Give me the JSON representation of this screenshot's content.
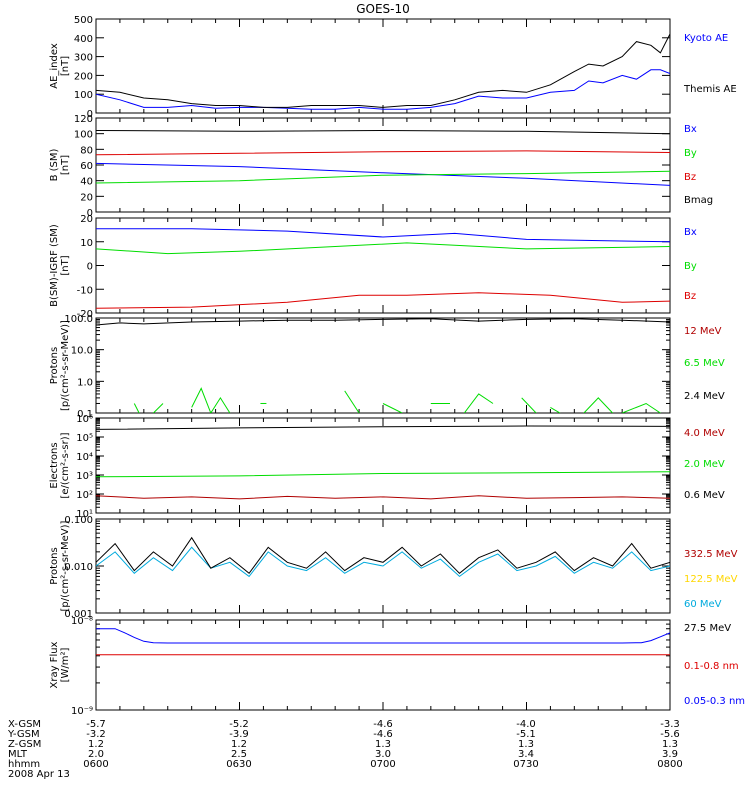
{
  "title": "GOES-10",
  "colors": {
    "black": "#000000",
    "blue": "#0000ff",
    "red": "#dd0000",
    "green": "#00dd00",
    "darkred": "#b00000",
    "yellow": "#ffd700",
    "cyan": "#00aadd"
  },
  "footer": {
    "rows": [
      {
        "label": "X-GSM",
        "values": [
          "-5.7",
          "-5.2",
          "-4.6",
          "-4.0",
          "-3.3"
        ]
      },
      {
        "label": "Y-GSM",
        "values": [
          "-3.2",
          "-3.9",
          "-4.6",
          "-5.1",
          "-5.6"
        ]
      },
      {
        "label": "Z-GSM",
        "values": [
          "1.2",
          "1.2",
          "1.3",
          "1.3",
          "1.3"
        ]
      },
      {
        "label": "MLT",
        "values": [
          "2.0",
          "2.5",
          "3.0",
          "3.4",
          "3.9"
        ]
      },
      {
        "label": "hhmm",
        "values": [
          "0600",
          "0630",
          "0700",
          "0730",
          "0800"
        ]
      }
    ],
    "date": "2008 Apr 13"
  },
  "chart_data": [
    {
      "type": "line",
      "ylabel": [
        "AE_index",
        "[nT]"
      ],
      "ylim": [
        0,
        500
      ],
      "yscale": "linear",
      "yticks": [
        0,
        100,
        200,
        300,
        400,
        500
      ],
      "ytick_labels": [
        "0",
        "100",
        "200",
        "300",
        "400",
        "500"
      ],
      "xlim": [
        0,
        120
      ],
      "series": [
        {
          "name": "Kyoto AE",
          "color": "#0000ff",
          "x": [
            0,
            5,
            10,
            15,
            20,
            25,
            30,
            35,
            40,
            45,
            50,
            55,
            60,
            65,
            70,
            75,
            80,
            85,
            90,
            95,
            100,
            103,
            106,
            110,
            113,
            116,
            118,
            120
          ],
          "values": [
            100,
            70,
            30,
            30,
            40,
            25,
            30,
            30,
            25,
            20,
            20,
            30,
            20,
            20,
            30,
            50,
            90,
            80,
            80,
            110,
            120,
            170,
            160,
            200,
            180,
            230,
            230,
            210
          ]
        },
        {
          "name": "Themis AE",
          "color": "#000000",
          "x": [
            0,
            5,
            10,
            15,
            20,
            25,
            30,
            35,
            40,
            45,
            50,
            55,
            60,
            65,
            70,
            75,
            80,
            85,
            90,
            95,
            100,
            103,
            106,
            110,
            113,
            116,
            118,
            120
          ],
          "values": [
            120,
            110,
            80,
            70,
            50,
            40,
            40,
            30,
            30,
            40,
            40,
            40,
            30,
            40,
            40,
            70,
            110,
            120,
            110,
            150,
            220,
            260,
            250,
            300,
            380,
            360,
            320,
            420
          ]
        }
      ]
    },
    {
      "type": "line",
      "ylabel": [
        "B (SM)",
        "[nT]"
      ],
      "ylim": [
        0,
        120
      ],
      "yscale": "linear",
      "yticks": [
        0,
        20,
        40,
        60,
        80,
        100,
        120
      ],
      "ytick_labels": [
        "0",
        "20",
        "40",
        "60",
        "80",
        "100",
        "120"
      ],
      "xlim": [
        0,
        120
      ],
      "series": [
        {
          "name": "Bx",
          "color": "#0000ff",
          "x": [
            0,
            30,
            60,
            90,
            120
          ],
          "values": [
            62,
            58,
            50,
            43,
            34
          ]
        },
        {
          "name": "By",
          "color": "#00dd00",
          "x": [
            0,
            30,
            60,
            90,
            120
          ],
          "values": [
            37,
            40,
            47,
            49,
            52
          ]
        },
        {
          "name": "Bz",
          "color": "#dd0000",
          "x": [
            0,
            30,
            60,
            90,
            120
          ],
          "values": [
            73,
            75,
            77,
            78,
            76
          ]
        },
        {
          "name": "Bmag",
          "color": "#000000",
          "x": [
            0,
            30,
            60,
            90,
            120
          ],
          "values": [
            104,
            103,
            104,
            103,
            100
          ]
        }
      ]
    },
    {
      "type": "line",
      "ylabel": [
        "B(SM)-IGRF (SM)",
        "[nT]"
      ],
      "ylim": [
        -20,
        20
      ],
      "yscale": "linear",
      "yticks": [
        -20,
        -10,
        0,
        10,
        20
      ],
      "ytick_labels": [
        "-20",
        "-10",
        "0",
        "10",
        "20"
      ],
      "xlim": [
        0,
        120
      ],
      "series": [
        {
          "name": "Bx",
          "color": "#0000ff",
          "x": [
            0,
            20,
            40,
            60,
            75,
            90,
            120
          ],
          "values": [
            15.5,
            15.5,
            14.5,
            12,
            13.5,
            11,
            10
          ]
        },
        {
          "name": "By",
          "color": "#00dd00",
          "x": [
            0,
            15,
            30,
            50,
            65,
            75,
            90,
            120
          ],
          "values": [
            7,
            5,
            6,
            8,
            9.5,
            8.5,
            7,
            8
          ]
        },
        {
          "name": "Bz",
          "color": "#dd0000",
          "x": [
            0,
            20,
            40,
            55,
            65,
            80,
            95,
            110,
            120
          ],
          "values": [
            -18,
            -17.5,
            -15.5,
            -12.5,
            -12.5,
            -11.5,
            -12.5,
            -15.5,
            -15
          ]
        }
      ]
    },
    {
      "type": "line",
      "ylabel": [
        "Protons",
        "[p/(cm²-s-sr-MeV)]"
      ],
      "ylim": [
        0.1,
        100
      ],
      "yscale": "log",
      "yticks": [
        0.1,
        1,
        10,
        100
      ],
      "ytick_labels": [
        "0.1",
        "1.0",
        "10.0",
        "100.0"
      ],
      "xlim": [
        0,
        120
      ],
      "series": [
        {
          "name": "12 MeV",
          "color": "#b00000",
          "x": [],
          "values": []
        },
        {
          "name": "6.5 MeV",
          "color": "#00dd00",
          "segments": [
            [
              [
                8,
                0.2
              ],
              [
                9,
                0.1
              ]
            ],
            [
              [
                12,
                0.1
              ],
              [
                14,
                0.2
              ]
            ],
            [
              [
                20,
                0.15
              ],
              [
                22,
                0.6
              ],
              [
                24,
                0.1
              ],
              [
                26,
                0.3
              ],
              [
                28,
                0.1
              ]
            ],
            [
              [
                35,
                0.2
              ]
            ],
            [
              [
                52,
                0.5
              ],
              [
                55,
                0.1
              ]
            ],
            [
              [
                60,
                0.2
              ],
              [
                64,
                0.1
              ]
            ],
            [
              [
                70,
                0.2
              ],
              [
                74,
                0.2
              ]
            ],
            [
              [
                77,
                0.1
              ],
              [
                80,
                0.4
              ],
              [
                83,
                0.2
              ]
            ],
            [
              [
                89,
                0.3
              ],
              [
                92,
                0.1
              ]
            ],
            [
              [
                95,
                0.15
              ],
              [
                97,
                0.1
              ]
            ],
            [
              [
                102,
                0.1
              ],
              [
                105,
                0.3
              ],
              [
                108,
                0.1
              ]
            ],
            [
              [
                110,
                0.1
              ],
              [
                115,
                0.2
              ],
              [
                118,
                0.1
              ]
            ]
          ]
        },
        {
          "name": "2.4 MeV",
          "color": "#000000",
          "x": [
            0,
            5,
            10,
            20,
            30,
            40,
            50,
            60,
            70,
            80,
            90,
            100,
            110,
            120
          ],
          "values": [
            60,
            70,
            65,
            75,
            80,
            85,
            85,
            90,
            95,
            80,
            90,
            95,
            85,
            75
          ]
        }
      ]
    },
    {
      "type": "line",
      "ylabel": [
        "Electrons",
        "[e/(cm²-s-sr)]"
      ],
      "ylim": [
        10,
        1000000
      ],
      "yscale": "log",
      "yticks": [
        10,
        100,
        1000,
        10000,
        100000,
        1000000
      ],
      "ytick_labels": [
        "10¹",
        "10²",
        "10³",
        "10⁴",
        "10⁵",
        "10⁶"
      ],
      "xlim": [
        0,
        120
      ],
      "series": [
        {
          "name": "4.0 MeV",
          "color": "#b00000",
          "x": [
            0,
            10,
            20,
            30,
            40,
            50,
            60,
            70,
            80,
            90,
            100,
            110,
            120
          ],
          "values": [
            80,
            60,
            70,
            55,
            75,
            60,
            70,
            55,
            80,
            60,
            65,
            70,
            60
          ]
        },
        {
          "name": "2.0 MeV",
          "color": "#00dd00",
          "x": [
            0,
            30,
            60,
            90,
            120
          ],
          "values": [
            800,
            900,
            1200,
            1300,
            1500
          ]
        },
        {
          "name": "0.6 MeV",
          "color": "#000000",
          "x": [
            0,
            30,
            60,
            90,
            120
          ],
          "values": [
            250000,
            300000,
            350000,
            380000,
            360000
          ]
        }
      ]
    },
    {
      "type": "line",
      "ylabel": [
        "Protons",
        "[p/(cm²-s-sr-MeV)]"
      ],
      "ylim": [
        0.001,
        0.1
      ],
      "yscale": "log",
      "yticks": [
        0.001,
        0.01,
        0.1
      ],
      "ytick_labels": [
        "0.001",
        "0.010",
        "0.100"
      ],
      "xlim": [
        0,
        120
      ],
      "series": [
        {
          "name": "332.5 MeV",
          "color": "#b00000",
          "x": [],
          "values": []
        },
        {
          "name": "122.5 MeV",
          "color": "#ffd700",
          "x": [],
          "values": []
        },
        {
          "name": "60 MeV",
          "color": "#00aadd",
          "x": [
            0,
            4,
            8,
            12,
            16,
            20,
            24,
            28,
            32,
            36,
            40,
            44,
            48,
            52,
            56,
            60,
            64,
            68,
            72,
            76,
            80,
            84,
            88,
            92,
            96,
            100,
            104,
            108,
            112,
            116,
            120
          ],
          "values": [
            0.01,
            0.02,
            0.007,
            0.015,
            0.008,
            0.025,
            0.009,
            0.012,
            0.006,
            0.02,
            0.01,
            0.008,
            0.015,
            0.007,
            0.012,
            0.01,
            0.02,
            0.009,
            0.014,
            0.006,
            0.012,
            0.018,
            0.008,
            0.01,
            0.016,
            0.007,
            0.012,
            0.009,
            0.02,
            0.008,
            0.01
          ]
        },
        {
          "name": "27.5 MeV",
          "color": "#000000",
          "x": [
            0,
            4,
            8,
            12,
            16,
            20,
            24,
            28,
            32,
            36,
            40,
            44,
            48,
            52,
            56,
            60,
            64,
            68,
            72,
            76,
            80,
            84,
            88,
            92,
            96,
            100,
            104,
            108,
            112,
            116,
            120
          ],
          "values": [
            0.012,
            0.03,
            0.008,
            0.02,
            0.01,
            0.04,
            0.009,
            0.015,
            0.007,
            0.025,
            0.012,
            0.009,
            0.02,
            0.008,
            0.015,
            0.012,
            0.025,
            0.01,
            0.018,
            0.007,
            0.015,
            0.022,
            0.009,
            0.012,
            0.02,
            0.008,
            0.015,
            0.01,
            0.03,
            0.009,
            0.012
          ]
        }
      ]
    },
    {
      "type": "line",
      "ylabel": [
        "Xray Flux",
        "[W/m²]"
      ],
      "ylim": [
        1e-09,
        1e-08
      ],
      "yscale": "log",
      "yticks": [
        1e-09,
        1e-08
      ],
      "ytick_labels": [
        "10⁻⁹",
        "10⁻⁸"
      ],
      "xlim": [
        0,
        120
      ],
      "series": [
        {
          "name": "0.1-0.8 nm",
          "color": "#dd0000",
          "x": [
            0,
            120
          ],
          "values": [
            4.1e-09,
            4.1e-09
          ]
        },
        {
          "name": "0.05-0.3 nm",
          "color": "#0000ff",
          "x": [
            0,
            2,
            4,
            6,
            8,
            10,
            12,
            15,
            30,
            60,
            90,
            110,
            114,
            116,
            118,
            120
          ],
          "values": [
            8e-09,
            8e-09,
            8e-09,
            7.2e-09,
            6.4e-09,
            5.8e-09,
            5.6e-09,
            5.55e-09,
            5.55e-09,
            5.55e-09,
            5.55e-09,
            5.55e-09,
            5.6e-09,
            5.9e-09,
            6.5e-09,
            7.2e-09
          ]
        }
      ]
    }
  ]
}
